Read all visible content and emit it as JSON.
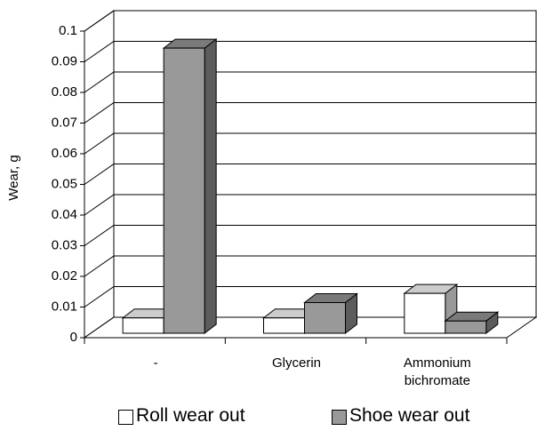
{
  "chart_data": {
    "type": "bar3d",
    "y_label": "Wear, g",
    "categories": [
      "-",
      "Glycerin",
      "Ammonium bichromate"
    ],
    "series": [
      {
        "name": "Roll wear out",
        "color": "#ffffff",
        "values": [
          0.005,
          0.005,
          0.013
        ]
      },
      {
        "name": "Shoe wear out",
        "color": "#999999",
        "values": [
          0.093,
          0.01,
          0.004
        ]
      }
    ],
    "ylim": [
      0,
      0.1
    ],
    "yticks": [
      0,
      0.01,
      0.02,
      0.03,
      0.04,
      0.05,
      0.06,
      0.07,
      0.08,
      0.09,
      0.1
    ],
    "grid": true
  }
}
